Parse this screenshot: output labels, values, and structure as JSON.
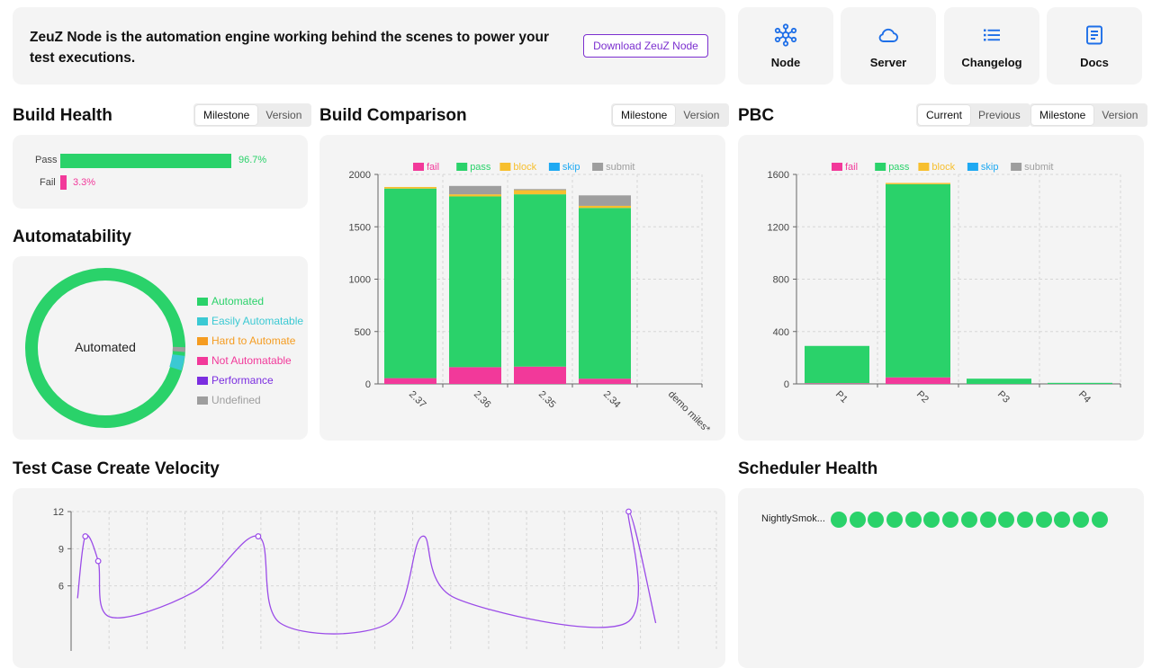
{
  "banner": {
    "text": "ZeuZ Node is the automation engine working behind the scenes to power your test executions.",
    "download_label": "Download ZeuZ Node"
  },
  "nav": {
    "node": "Node",
    "server": "Server",
    "changelog": "Changelog",
    "docs": "Docs"
  },
  "colors": {
    "pass": "#2ad26a",
    "fail": "#f2399a",
    "block": "#f7bf2e",
    "skip": "#1ea9f2",
    "submit": "#9e9e9e",
    "easily": "#3bc9d3",
    "hard": "#f59c21",
    "performance": "#7b2ee0",
    "line": "#9b4ce8"
  },
  "build_health": {
    "title": "Build Health",
    "toggle": [
      "Milestone",
      "Version"
    ],
    "pass_label": "Pass",
    "fail_label": "Fail",
    "pass_value": "96.7%",
    "fail_value": "3.3%",
    "pass_fraction": 0.967,
    "fail_fraction": 0.033
  },
  "automatability": {
    "title": "Automatability",
    "center_label": "Automated",
    "legend": [
      "Automated",
      "Easily Automatable",
      "Hard to Automate",
      "Not Automatable",
      "Performance",
      "Undefined"
    ]
  },
  "build_comparison": {
    "title": "Build Comparison",
    "toggle": [
      "Milestone",
      "Version"
    ]
  },
  "pbc": {
    "title": "PBC",
    "toggle1": [
      "Current",
      "Previous"
    ],
    "toggle2": [
      "Milestone",
      "Version"
    ]
  },
  "velocity": {
    "title": "Test Case Create Velocity"
  },
  "scheduler": {
    "title": "Scheduler Health",
    "row_label": "NightlySmok...",
    "runs_passed": 15
  },
  "chart_data": [
    {
      "type": "bar",
      "name": "build-comparison",
      "categories": [
        "2.37",
        "2.36",
        "2.35",
        "2.34",
        "demo miles*"
      ],
      "series": [
        {
          "name": "fail",
          "values": [
            55,
            160,
            165,
            50,
            0
          ]
        },
        {
          "name": "pass",
          "values": [
            1810,
            1630,
            1645,
            1630,
            0
          ]
        },
        {
          "name": "block",
          "values": [
            15,
            20,
            40,
            20,
            0
          ]
        },
        {
          "name": "skip",
          "values": [
            0,
            0,
            0,
            0,
            0
          ]
        },
        {
          "name": "submit",
          "values": [
            0,
            80,
            10,
            100,
            0
          ]
        }
      ],
      "yticks": [
        0,
        500,
        1000,
        1500,
        2000
      ],
      "ylim": [
        0,
        2000
      ],
      "legend": "top"
    },
    {
      "type": "bar",
      "name": "pbc",
      "categories": [
        "P1",
        "P2",
        "P3",
        "P4"
      ],
      "series": [
        {
          "name": "fail",
          "values": [
            5,
            50,
            0,
            0
          ]
        },
        {
          "name": "pass",
          "values": [
            285,
            1475,
            40,
            8
          ]
        },
        {
          "name": "block",
          "values": [
            0,
            10,
            0,
            0
          ]
        },
        {
          "name": "skip",
          "values": [
            0,
            0,
            0,
            0
          ]
        },
        {
          "name": "submit",
          "values": [
            0,
            0,
            0,
            0
          ]
        }
      ],
      "yticks": [
        0,
        400,
        800,
        1200,
        1600
      ],
      "ylim": [
        0,
        1600
      ],
      "legend": "top"
    },
    {
      "type": "pie",
      "name": "automatability",
      "labels": [
        "Automated",
        "Easily Automatable",
        "Hard to Automate",
        "Not Automatable",
        "Performance",
        "Undefined"
      ],
      "values": [
        94.5,
        4,
        0.3,
        0.2,
        0,
        1
      ]
    },
    {
      "type": "line",
      "name": "velocity",
      "points": [
        [
          0.05,
          5.0
        ],
        [
          0.11,
          10
        ],
        [
          0.21,
          8
        ],
        [
          0.3,
          3.5
        ],
        [
          0.95,
          5.5
        ],
        [
          1.45,
          10
        ],
        [
          1.62,
          3.0
        ],
        [
          2.46,
          3.0
        ],
        [
          2.72,
          10
        ],
        [
          2.98,
          5.0
        ],
        [
          4.3,
          3.0
        ],
        [
          4.32,
          12
        ],
        [
          4.53,
          3.0
        ]
      ],
      "markers": [
        [
          0.11,
          10
        ],
        [
          0.21,
          8
        ],
        [
          1.45,
          10
        ],
        [
          4.32,
          12
        ]
      ],
      "yticks": [
        6,
        9,
        12
      ],
      "ylim": [
        3,
        12
      ]
    }
  ]
}
